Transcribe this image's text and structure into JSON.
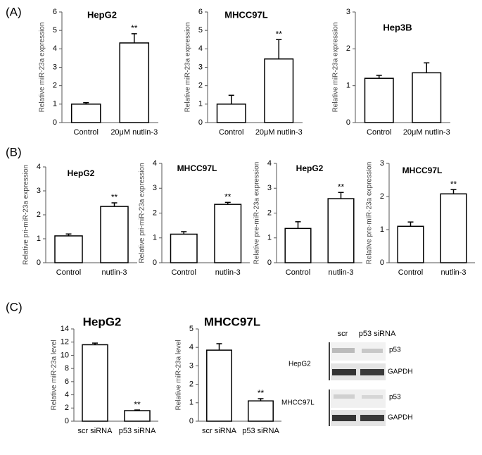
{
  "panel_labels": [
    "(A)",
    "(B)",
    "(C)"
  ],
  "chart_data": [
    {
      "type": "bar",
      "title": "HepG2",
      "y_label": "Relative miR-23a expression",
      "categories": [
        "Control",
        "20μM nutlin-3"
      ],
      "values": [
        1.0,
        4.32
      ],
      "errors": [
        0.08,
        0.5
      ],
      "significance": [
        null,
        "**"
      ],
      "ylim": [
        0,
        6
      ],
      "yticks": [
        0,
        1,
        2,
        3,
        4,
        5,
        6
      ],
      "color": "#ffffff"
    },
    {
      "type": "bar",
      "title": "MHCC97L",
      "y_label": "Relative miR-23a expression",
      "categories": [
        "Control",
        "20μM nutlin-3"
      ],
      "values": [
        1.0,
        3.45
      ],
      "errors": [
        0.48,
        1.05
      ],
      "significance": [
        null,
        "**"
      ],
      "ylim": [
        0,
        6
      ],
      "yticks": [
        0,
        1,
        2,
        3,
        4,
        5,
        6
      ],
      "color": "#ffffff"
    },
    {
      "type": "bar",
      "title": "Hep3B",
      "y_label": "Relative miR-23a expression",
      "categories": [
        "Control",
        "20μM nutlin-3"
      ],
      "values": [
        1.2,
        1.35
      ],
      "errors": [
        0.08,
        0.27
      ],
      "ylim": [
        0,
        3
      ],
      "yticks": [
        0,
        1,
        2,
        3
      ],
      "color": "#ffffff"
    },
    {
      "type": "bar",
      "title": "HepG2",
      "y_label": "Relative pri-miR-23a expression",
      "categories": [
        "Control",
        "nutlin-3"
      ],
      "values": [
        1.12,
        2.35
      ],
      "errors": [
        0.08,
        0.15
      ],
      "significance": [
        null,
        "**"
      ],
      "ylim": [
        0,
        4
      ],
      "yticks": [
        0,
        1,
        2,
        3,
        4
      ],
      "color": "#ffffff"
    },
    {
      "type": "bar",
      "title": "MHCC97L",
      "y_label": "Relative pri-miR-23a expression",
      "categories": [
        "Control",
        "nutlin-3"
      ],
      "values": [
        1.15,
        2.35
      ],
      "errors": [
        0.1,
        0.08
      ],
      "significance": [
        null,
        "**"
      ],
      "ylim": [
        0,
        4
      ],
      "yticks": [
        0,
        1,
        2,
        3,
        4
      ],
      "color": "#ffffff"
    },
    {
      "type": "bar",
      "title": "HepG2",
      "y_label": "Relative pre-miR-23a expression",
      "categories": [
        "Control",
        "nutlin-3"
      ],
      "values": [
        1.38,
        2.58
      ],
      "errors": [
        0.27,
        0.25
      ],
      "significance": [
        null,
        "**"
      ],
      "ylim": [
        0,
        4
      ],
      "yticks": [
        0,
        1,
        2,
        3,
        4
      ],
      "color": "#ffffff"
    },
    {
      "type": "bar",
      "title": "MHCC97L",
      "y_label": "Relative pre-miR-23a expression",
      "categories": [
        "Control",
        "nutlin-3"
      ],
      "values": [
        1.1,
        2.08
      ],
      "errors": [
        0.13,
        0.13
      ],
      "significance": [
        null,
        "**"
      ],
      "ylim": [
        0,
        3
      ],
      "yticks": [
        0,
        1,
        2,
        3
      ],
      "color": "#ffffff"
    },
    {
      "type": "bar",
      "title": "HepG2",
      "y_label": "Relative miR-23a level",
      "categories": [
        "scr siRNA",
        "p53 siRNA"
      ],
      "values": [
        11.6,
        1.6
      ],
      "errors": [
        0.25,
        0.1
      ],
      "significance": [
        null,
        "**"
      ],
      "ylim": [
        0,
        14
      ],
      "yticks": [
        0,
        2,
        4,
        6,
        8,
        10,
        12,
        14
      ],
      "color": "#ffffff"
    },
    {
      "type": "bar",
      "title": "MHCC97L",
      "y_label": "Relative miR-23a level",
      "categories": [
        "scr siRNA",
        "p53 siRNA"
      ],
      "values": [
        3.85,
        1.1
      ],
      "errors": [
        0.35,
        0.12
      ],
      "significance": [
        null,
        "**"
      ],
      "ylim": [
        0,
        5
      ],
      "yticks": [
        0,
        1,
        2,
        3,
        4,
        5
      ],
      "color": "#ffffff"
    }
  ],
  "blot": {
    "columns": [
      "scr",
      "p53 siRNA"
    ],
    "groups": [
      {
        "label": "HepG2",
        "bands": [
          "p53",
          "GAPDH"
        ]
      },
      {
        "label": "MHCC97L",
        "bands": [
          "p53",
          "GAPDH"
        ]
      }
    ]
  }
}
